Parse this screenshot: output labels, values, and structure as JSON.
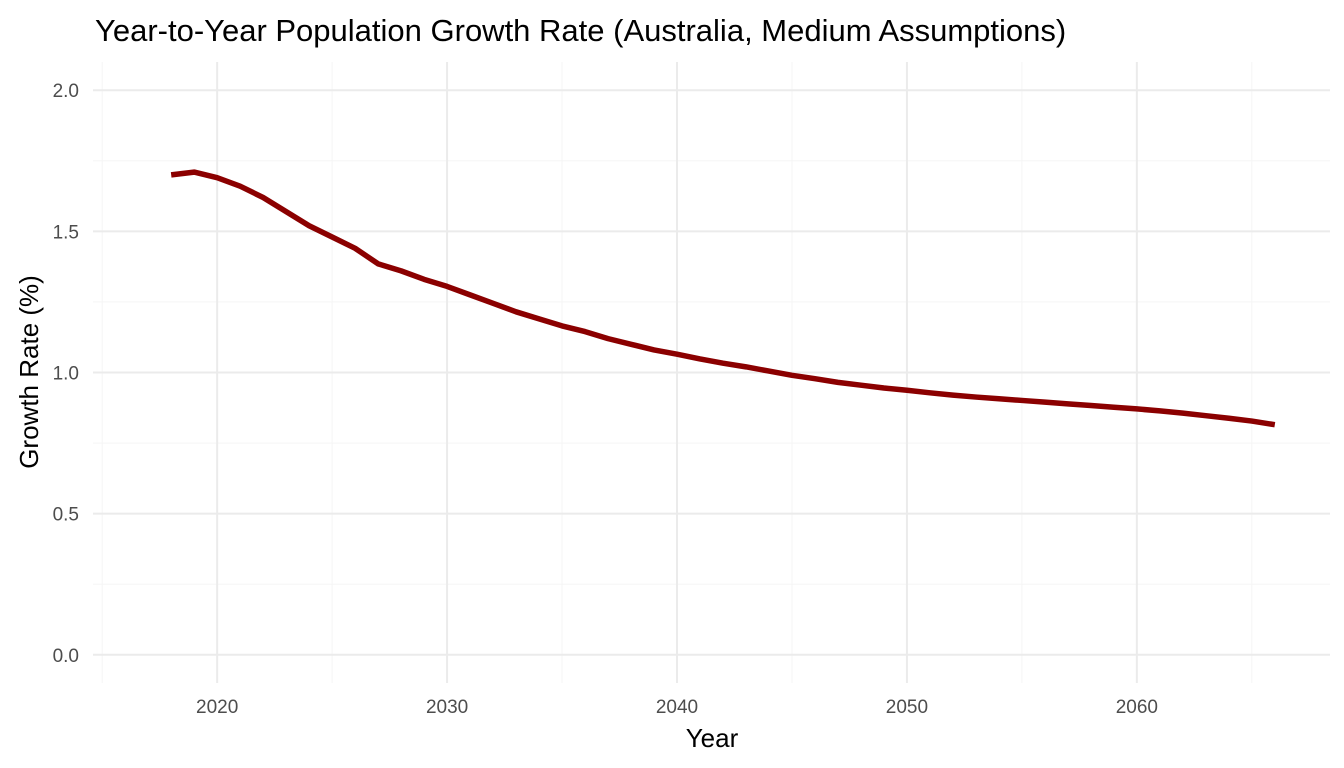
{
  "chart_data": {
    "type": "line",
    "title": "Year-to-Year Population Growth Rate (Australia, Medium Assumptions)",
    "xlabel": "Year",
    "ylabel": "Growth Rate (%)",
    "xlim": [
      2014.6,
      2068.4
    ],
    "ylim": [
      -0.1,
      2.1
    ],
    "x_ticks": [
      2020,
      2030,
      2040,
      2050,
      2060
    ],
    "y_ticks": [
      0.0,
      0.5,
      1.0,
      1.5,
      2.0
    ],
    "x_tick_labels": [
      "2020",
      "2030",
      "2040",
      "2050",
      "2060"
    ],
    "y_tick_labels": [
      "0.0",
      "0.5",
      "1.0",
      "1.5",
      "2.0"
    ],
    "grid": true,
    "legend": "none",
    "series": [
      {
        "color": "#8b0000",
        "x": [
          2018,
          2019,
          2020,
          2021,
          2022,
          2023,
          2024,
          2025,
          2026,
          2027,
          2028,
          2029,
          2030,
          2031,
          2032,
          2033,
          2034,
          2035,
          2036,
          2037,
          2038,
          2039,
          2040,
          2041,
          2042,
          2043,
          2044,
          2045,
          2046,
          2047,
          2048,
          2049,
          2050,
          2051,
          2052,
          2053,
          2054,
          2055,
          2056,
          2057,
          2058,
          2059,
          2060,
          2061,
          2062,
          2063,
          2064,
          2065,
          2066
        ],
        "y": [
          1.7,
          1.71,
          1.69,
          1.66,
          1.62,
          1.57,
          1.52,
          1.48,
          1.44,
          1.385,
          1.36,
          1.33,
          1.305,
          1.275,
          1.245,
          1.215,
          1.19,
          1.165,
          1.145,
          1.12,
          1.1,
          1.08,
          1.065,
          1.048,
          1.033,
          1.02,
          1.005,
          0.99,
          0.978,
          0.965,
          0.955,
          0.945,
          0.937,
          0.928,
          0.92,
          0.913,
          0.907,
          0.901,
          0.895,
          0.889,
          0.883,
          0.877,
          0.871,
          0.864,
          0.856,
          0.847,
          0.838,
          0.828,
          0.815
        ]
      }
    ]
  }
}
